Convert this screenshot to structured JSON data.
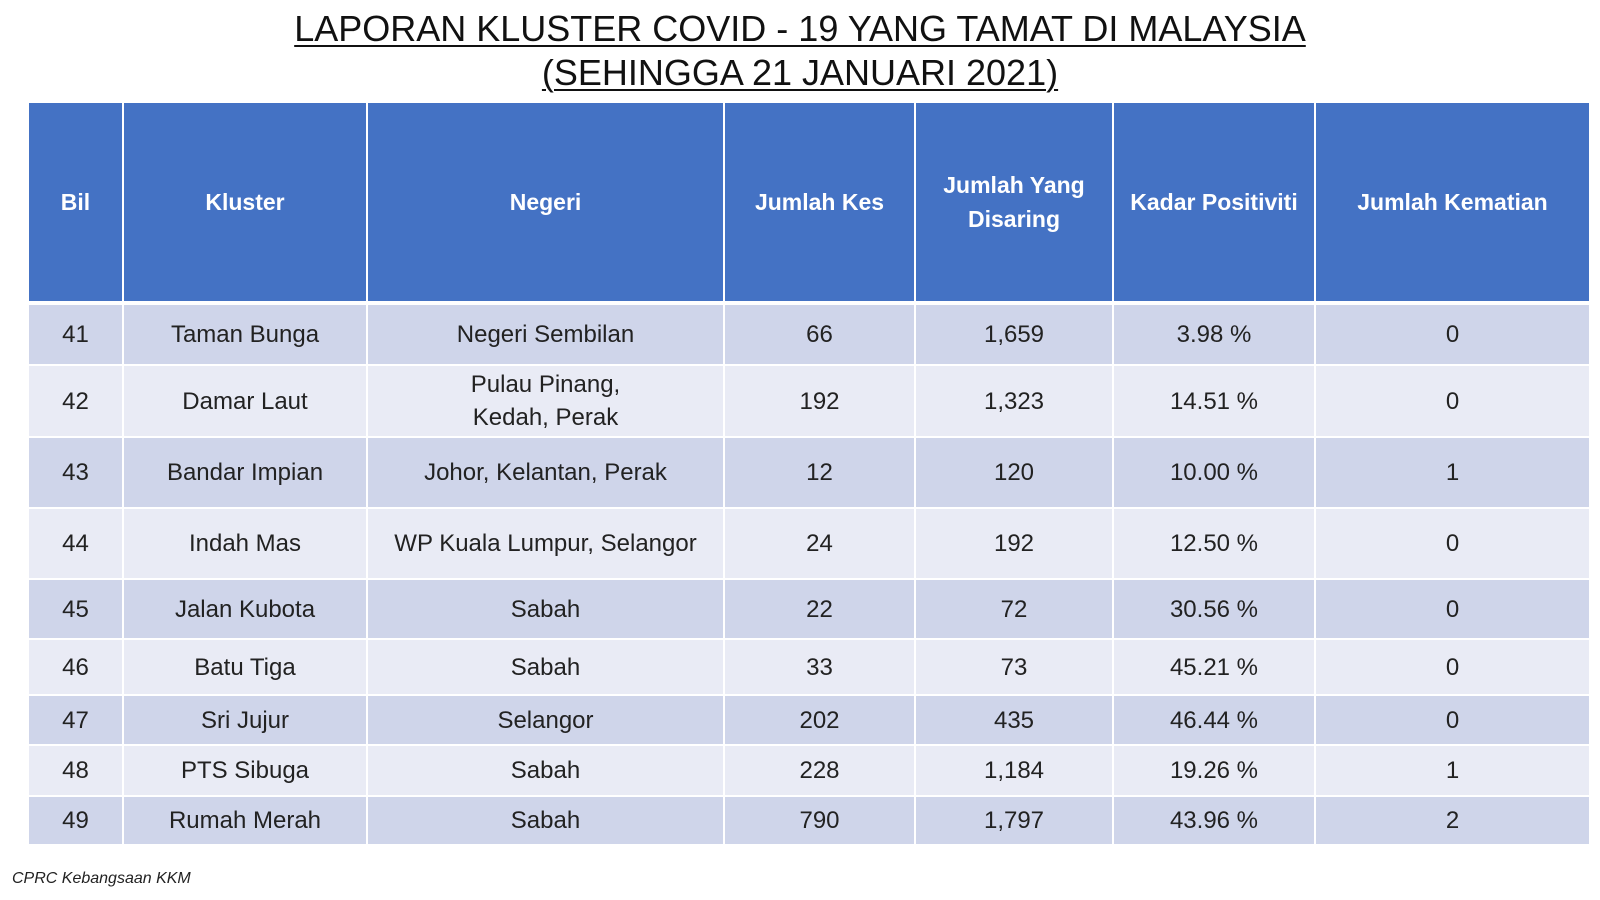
{
  "title": {
    "line1": "LAPORAN KLUSTER COVID - 19 YANG TAMAT DI MALAYSIA",
    "line2": "(SEHINGGA  21 JANUARI 2021)"
  },
  "table": {
    "headers": {
      "bil": "Bil",
      "kluster": "Kluster",
      "negeri": "Negeri",
      "jumlah_kes": "Jumlah Kes",
      "jumlah_disaring_l1": "Jumlah Yang",
      "jumlah_disaring_l2": "Disaring",
      "kadar_positiviti": "Kadar Positiviti",
      "jumlah_kematian": "Jumlah Kematian"
    },
    "rows": [
      {
        "bil": "41",
        "kluster": "Taman Bunga",
        "negeri_l1": "Negeri Sembilan",
        "negeri_l2": "",
        "kes": "66",
        "disaring": "1,659",
        "positiviti": "3.98 %",
        "kematian": "0"
      },
      {
        "bil": "42",
        "kluster": "Damar Laut",
        "negeri_l1": "Pulau Pinang,",
        "negeri_l2": "Kedah, Perak",
        "kes": "192",
        "disaring": "1,323",
        "positiviti": "14.51 %",
        "kematian": "0"
      },
      {
        "bil": "43",
        "kluster": "Bandar Impian",
        "negeri_l1": "Johor, Kelantan, Perak",
        "negeri_l2": "",
        "kes": "12",
        "disaring": "120",
        "positiviti": "10.00 %",
        "kematian": "1"
      },
      {
        "bil": "44",
        "kluster": "Indah Mas",
        "negeri_l1": "WP Kuala Lumpur, Selangor",
        "negeri_l2": "",
        "kes": "24",
        "disaring": "192",
        "positiviti": "12.50 %",
        "kematian": "0"
      },
      {
        "bil": "45",
        "kluster": "Jalan Kubota",
        "negeri_l1": "Sabah",
        "negeri_l2": "",
        "kes": "22",
        "disaring": "72",
        "positiviti": "30.56 %",
        "kematian": "0"
      },
      {
        "bil": "46",
        "kluster": "Batu Tiga",
        "negeri_l1": "Sabah",
        "negeri_l2": "",
        "kes": "33",
        "disaring": "73",
        "positiviti": "45.21 %",
        "kematian": "0"
      },
      {
        "bil": "47",
        "kluster": "Sri Jujur",
        "negeri_l1": "Selangor",
        "negeri_l2": "",
        "kes": "202",
        "disaring": "435",
        "positiviti": "46.44 %",
        "kematian": "0"
      },
      {
        "bil": "48",
        "kluster": "PTS Sibuga",
        "negeri_l1": "Sabah",
        "negeri_l2": "",
        "kes": "228",
        "disaring": "1,184",
        "positiviti": "19.26 %",
        "kematian": "1"
      },
      {
        "bil": "49",
        "kluster": "Rumah Merah",
        "negeri_l1": "Sabah",
        "negeri_l2": "",
        "kes": "790",
        "disaring": "1,797",
        "positiviti": "43.96 %",
        "kematian": "2"
      }
    ]
  },
  "source": "CPRC Kebangsaan KKM",
  "colors": {
    "header_bg": "#4472c4",
    "row_dark": "#cfd5ea",
    "row_light": "#e9ebf5"
  }
}
